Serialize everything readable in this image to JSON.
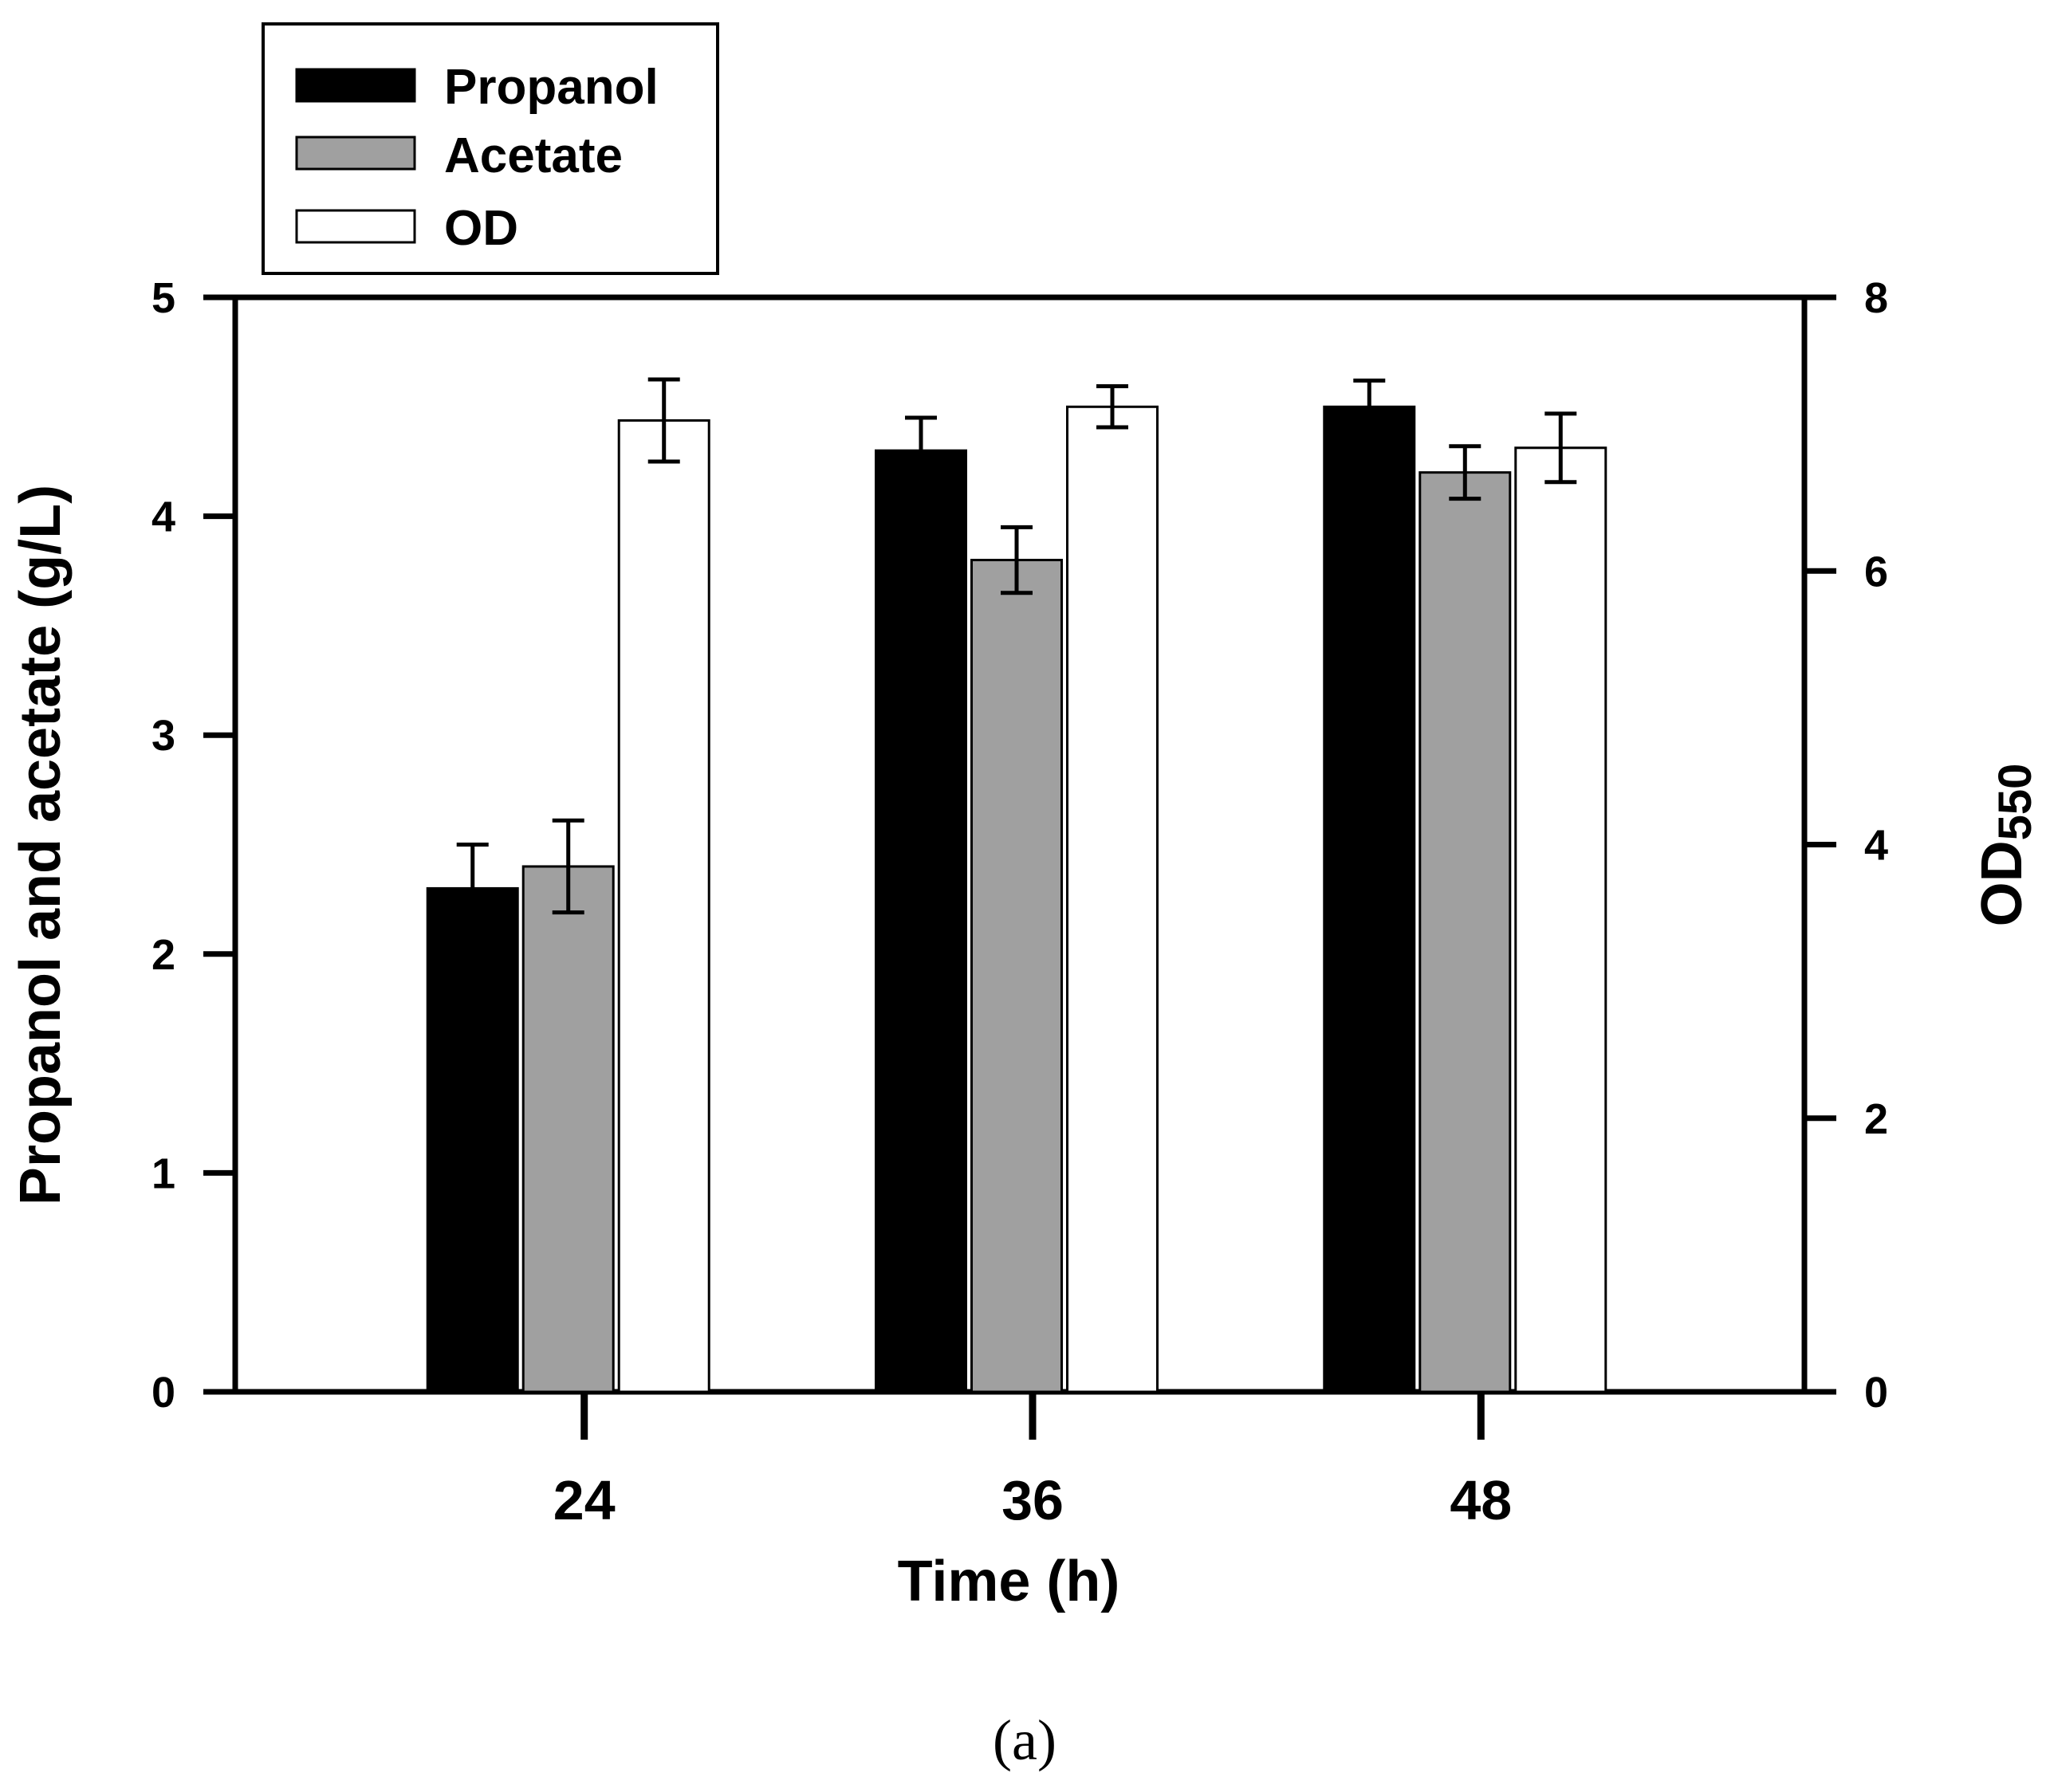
{
  "chart_data": {
    "type": "bar",
    "title": "",
    "caption": "(a)",
    "xlabel": "Time (h)",
    "categories": [
      "24",
      "36",
      "48"
    ],
    "left_axis": {
      "label": "Propanol and acetate (g/L)",
      "range": [
        0,
        5
      ],
      "ticks": [
        "0",
        "1",
        "2",
        "3",
        "4",
        "5"
      ]
    },
    "right_axis": {
      "label_main": "OD",
      "label_sub": "550",
      "range": [
        0,
        8
      ],
      "ticks": [
        "0",
        "2",
        "4",
        "6",
        "8"
      ]
    },
    "series": [
      {
        "name": "Propanol",
        "axis": "left",
        "color": "#000000",
        "values": [
          2.3,
          4.3,
          4.5
        ],
        "errors": [
          0.2,
          0.15,
          0.12
        ]
      },
      {
        "name": "Acetate",
        "axis": "left",
        "color": "#a0a0a0",
        "values": [
          2.4,
          3.8,
          4.2
        ],
        "errors": [
          0.21,
          0.15,
          0.12
        ]
      },
      {
        "name": "OD",
        "axis": "right",
        "color": "#ffffff",
        "values": [
          7.1,
          7.2,
          6.9
        ],
        "errors": [
          0.3,
          0.15,
          0.25
        ]
      }
    ],
    "legend_position": "top-left, outside plot area",
    "grid": false
  }
}
